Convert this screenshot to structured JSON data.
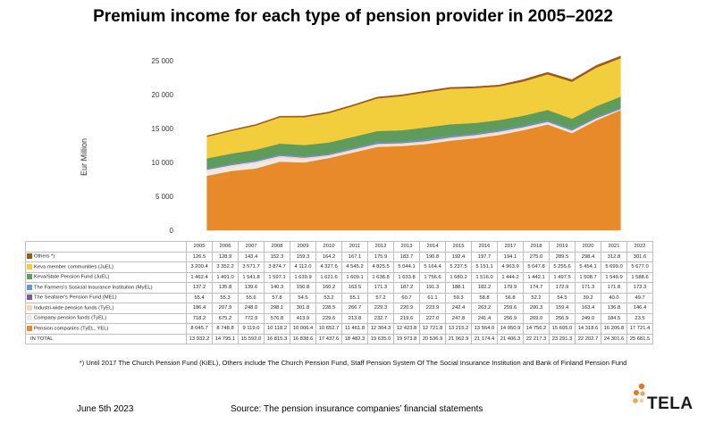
{
  "page": {
    "title": "Premium income for each type of pension provider in 2005–2022",
    "footnote": "*) Until 2017 The Church Pension Fund (KiEL), Others include The Church Pension Fund, Staff Pension System Of The Social Insurance Institution and Bank of Finland Pension Fund",
    "date": "June 5th 2023",
    "source": "Source: The pension insurance companies’ financial statements",
    "logo_text": "TELA",
    "logo_colors": [
      "#e8761e",
      "#f2a25a",
      "#f7c99b"
    ]
  },
  "chart_data": {
    "type": "area",
    "stacked": true,
    "title": "Premium income for each type of pension provider in 2005–2022",
    "ylabel": "Eur Million",
    "xlabel": "",
    "ylim": [
      0,
      25000
    ],
    "yticks": [
      "0",
      "5 000",
      "10 000",
      "15 000",
      "20 000",
      "25 000"
    ],
    "grid": false,
    "legend": "data table below chart",
    "categories": [
      "2005",
      "2006",
      "2007",
      "2008",
      "2009",
      "2010",
      "2011",
      "2012",
      "2013",
      "2014",
      "2015",
      "2016",
      "2017",
      "2018",
      "2019",
      "2020",
      "2021",
      "2022"
    ],
    "series": [
      {
        "name": "Others *)",
        "color": "#9b5a1a",
        "values": [
          126.5,
          128.9,
          143.4,
          152.3,
          159.3,
          164.2,
          167.1,
          175.9,
          183.7,
          190.8,
          192.4,
          197.7,
          194.1,
          275.0,
          289.5,
          298.4,
          312.8,
          301.6
        ],
        "labels": [
          "126.5",
          "128.9",
          "143.4",
          "152.3",
          "159.3",
          "164.2",
          "167.1",
          "175.9",
          "183.7",
          "190.8",
          "192.4",
          "197.7",
          "194.1",
          "275.0",
          "289.5",
          "298.4",
          "312.8",
          "301.6"
        ]
      },
      {
        "name": "Keva member communities (JuEL)",
        "color": "#f2cd3c",
        "values": [
          3200.4,
          3352.2,
          3571.7,
          3874.7,
          4112.0,
          4327.6,
          4545.2,
          4825.5,
          5044.1,
          5164.4,
          5237.5,
          5151.1,
          4963.9,
          5047.8,
          5255.6,
          5454.1,
          5699.0,
          5677.0
        ],
        "labels": [
          "3 200.4",
          "3 352.2",
          "3 571.7",
          "3 874.7",
          "4 112.0",
          "4 327.6",
          "4 545.2",
          "4 825.5",
          "5 044.1",
          "5 164.4",
          "5 237.5",
          "5 151.1",
          "4 963.9",
          "5 047.8",
          "5 255.6",
          "5 454.1",
          "5 699.0",
          "5 677.0"
        ]
      },
      {
        "name": "Keva/State Pension Fund (JuEL)",
        "color": "#5f9c5c",
        "values": [
          1462.4,
          1491.0,
          1541.8,
          1597.1,
          1639.9,
          1621.6,
          1609.1,
          1638.8,
          1633.8,
          1756.6,
          1680.2,
          1516.0,
          1444.2,
          1442.1,
          1497.5,
          1508.7,
          1549.9,
          1588.6
        ],
        "labels": [
          "1 462.4",
          "1 491.0",
          "1 541.8",
          "1 597.1",
          "1 639.9",
          "1 621.6",
          "1 609.1",
          "1 638.8",
          "1 633.8",
          "1 756.6",
          "1 680.2",
          "1 516.0",
          "1 444.2",
          "1 442.1",
          "1 497.5",
          "1 508.7",
          "1 549.9",
          "1 588.6"
        ]
      },
      {
        "name": "The Farmers's Sosicial Insurance Institution (MyEL)",
        "color": "#5b9bd5",
        "values": [
          137.2,
          135.8,
          139.6,
          140.3,
          150.8,
          160.2,
          163.5,
          171.3,
          187.2,
          191.3,
          188.1,
          182.2,
          179.9,
          174.7,
          172.9,
          171.3,
          171.8,
          173.3
        ],
        "labels": [
          "137.2",
          "135.8",
          "139.6",
          "140.3",
          "150.8",
          "160.2",
          "163.5",
          "171.3",
          "187.2",
          "191.3",
          "188.1",
          "182.2",
          "179.9",
          "174.7",
          "172.9",
          "171.3",
          "171.8",
          "173.3"
        ]
      },
      {
        "name": "The Seafarer's Pension Fund (MEL)",
        "color": "#7a5c9e",
        "values": [
          55.4,
          55.3,
          55.6,
          57.8,
          54.5,
          53.2,
          55.1,
          57.2,
          60.7,
          61.1,
          59.3,
          58.8,
          56.8,
          52.2,
          54.5,
          39.2,
          40.0,
          49.7
        ],
        "labels": [
          "55.4",
          "55.3",
          "55.6",
          "57.8",
          "54.5",
          "53.2",
          "55.1",
          "57.2",
          "60.7",
          "61.1",
          "59.3",
          "58.8",
          "56.8",
          "52.2",
          "54.5",
          "39.2",
          "40.0",
          "49.7"
        ]
      },
      {
        "name": "Industri-wide pension funds (TyEL)",
        "color": "#f8d6b8",
        "values": [
          186.4,
          207.9,
          248.0,
          298.1,
          301.8,
          228.5,
          266.7,
          229.3,
          220.9,
          223.9,
          242.4,
          263.2,
          259.6,
          200.3,
          159.4,
          163.4,
          136.8,
          146.4
        ],
        "labels": [
          "186.4",
          "207.9",
          "248.0",
          "298.1",
          "301.8",
          "228.5",
          "266.7",
          "229.3",
          "220.9",
          "223.9",
          "242.4",
          "263.2",
          "259.6",
          "200.3",
          "159.4",
          "163.4",
          "136.8",
          "146.4"
        ]
      },
      {
        "name": "Company pension funds (TyEL)",
        "color": "#eaeaea",
        "values": [
          718.2,
          675.2,
          772.9,
          576.8,
          413.9,
          229.6,
          213.8,
          232.7,
          219.6,
          227.0,
          247.8,
          241.4,
          256.9,
          269.0,
          256.9,
          249.0,
          184.5,
          23.5
        ],
        "labels": [
          "718.2",
          "675.2",
          "772.9",
          "576.8",
          "413.9",
          "229.6",
          "213.8",
          "232.7",
          "219.6",
          "227.0",
          "247.8",
          "241.4",
          "256.9",
          "269.0",
          "256.9",
          "249.0",
          "184.5",
          "23.5"
        ]
      },
      {
        "name": "Pension companies (TyEL, YEL)",
        "color": "#e8892a",
        "values": [
          8045.7,
          8748.8,
          9119.0,
          10118.2,
          10006.4,
          10652.7,
          11461.8,
          12304.3,
          12423.8,
          12721.8,
          13215.2,
          13564.0,
          14050.9,
          14756.2,
          15605.0,
          14318.6,
          16206.8,
          17721.4
        ],
        "labels": [
          "8 045.7",
          "8 748.8",
          "9 119.0",
          "10 118.2",
          "10 006.4",
          "10 652.7",
          "11 461.8",
          "12 304.3",
          "12 423.8",
          "12 721.8",
          "13 215.2",
          "13 564.0",
          "14 050.9",
          "14 756.2",
          "15 605.0",
          "14 318.6",
          "16 206.8",
          "17 721.4"
        ]
      }
    ],
    "total": {
      "name": "IN TOTAL",
      "labels": [
        "13 932.2",
        "14 795.1",
        "15 592.0",
        "16 815.3",
        "16 838.6",
        "17 437.6",
        "18 482.3",
        "19 635.0",
        "19 973.8",
        "20 536.9",
        "21 062.9",
        "21 174.4",
        "21 406.3",
        "22 217.3",
        "23 291.3",
        "22 202.7",
        "24 301.6",
        "25 681.5"
      ]
    }
  }
}
